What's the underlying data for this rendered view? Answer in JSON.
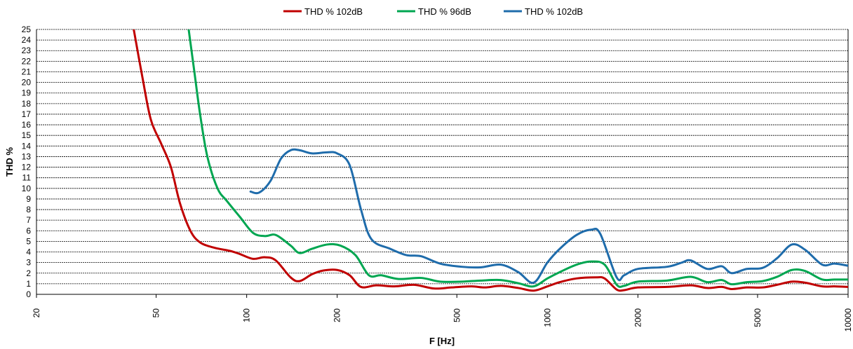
{
  "chart_data": {
    "type": "line",
    "xlabel": "F [Hz]",
    "ylabel": "THD %",
    "xscale": "log",
    "xlim": [
      20,
      10000
    ],
    "ylim": [
      0,
      25
    ],
    "grid": "horizontal-dashed",
    "legend": "top-center",
    "x_ticks": [
      {
        "value": 20,
        "label": "20"
      },
      {
        "value": 50,
        "label": "50"
      },
      {
        "value": 100,
        "label": "100"
      },
      {
        "value": 200,
        "label": "200"
      },
      {
        "value": 500,
        "label": "500"
      },
      {
        "value": 1000,
        "label": "1000"
      },
      {
        "value": 2000,
        "label": "2000"
      },
      {
        "value": 5000,
        "label": "5000"
      },
      {
        "value": 10000,
        "label": "10000"
      }
    ],
    "y_ticks": [
      "0",
      "1",
      "2",
      "3",
      "4",
      "5",
      "6",
      "7",
      "8",
      "9",
      "10",
      "11",
      "12",
      "13",
      "14",
      "15",
      "16",
      "17",
      "18",
      "19",
      "20",
      "21",
      "22",
      "23",
      "24",
      "25"
    ],
    "series": [
      {
        "name": "THD % 102dB",
        "color": "#c00000",
        "points": [
          [
            42,
            25.2
          ],
          [
            45,
            20.5
          ],
          [
            48,
            16.5
          ],
          [
            52,
            14.2
          ],
          [
            56,
            12.0
          ],
          [
            60,
            8.6
          ],
          [
            65,
            6.0
          ],
          [
            70,
            4.9
          ],
          [
            78,
            4.4
          ],
          [
            88,
            4.1
          ],
          [
            95,
            3.8
          ],
          [
            105,
            3.35
          ],
          [
            115,
            3.5
          ],
          [
            125,
            3.2
          ],
          [
            140,
            1.6
          ],
          [
            150,
            1.25
          ],
          [
            165,
            1.9
          ],
          [
            180,
            2.25
          ],
          [
            200,
            2.3
          ],
          [
            220,
            1.8
          ],
          [
            240,
            0.7
          ],
          [
            270,
            0.85
          ],
          [
            310,
            0.75
          ],
          [
            360,
            0.9
          ],
          [
            420,
            0.55
          ],
          [
            480,
            0.65
          ],
          [
            560,
            0.75
          ],
          [
            620,
            0.65
          ],
          [
            700,
            0.8
          ],
          [
            800,
            0.6
          ],
          [
            900,
            0.35
          ],
          [
            1000,
            0.75
          ],
          [
            1100,
            1.15
          ],
          [
            1250,
            1.5
          ],
          [
            1450,
            1.6
          ],
          [
            1550,
            1.5
          ],
          [
            1700,
            0.45
          ],
          [
            1800,
            0.4
          ],
          [
            2000,
            0.65
          ],
          [
            2500,
            0.7
          ],
          [
            3000,
            0.85
          ],
          [
            3400,
            0.6
          ],
          [
            3800,
            0.7
          ],
          [
            4100,
            0.5
          ],
          [
            4600,
            0.65
          ],
          [
            5200,
            0.65
          ],
          [
            5800,
            0.9
          ],
          [
            6500,
            1.2
          ],
          [
            7200,
            1.1
          ],
          [
            8200,
            0.75
          ],
          [
            9000,
            0.75
          ],
          [
            10000,
            0.7
          ]
        ]
      },
      {
        "name": "THD % 96dB",
        "color": "#00a651",
        "points": [
          [
            64,
            25.2
          ],
          [
            67,
            21.0
          ],
          [
            70,
            17.0
          ],
          [
            74,
            13.0
          ],
          [
            80,
            10.0
          ],
          [
            86,
            8.8
          ],
          [
            95,
            7.3
          ],
          [
            105,
            5.8
          ],
          [
            115,
            5.5
          ],
          [
            125,
            5.6
          ],
          [
            140,
            4.6
          ],
          [
            150,
            3.9
          ],
          [
            165,
            4.3
          ],
          [
            185,
            4.7
          ],
          [
            205,
            4.6
          ],
          [
            230,
            3.7
          ],
          [
            255,
            1.8
          ],
          [
            280,
            1.8
          ],
          [
            320,
            1.45
          ],
          [
            380,
            1.55
          ],
          [
            440,
            1.2
          ],
          [
            520,
            1.2
          ],
          [
            600,
            1.3
          ],
          [
            700,
            1.35
          ],
          [
            800,
            1.05
          ],
          [
            900,
            0.75
          ],
          [
            1000,
            1.5
          ],
          [
            1100,
            2.1
          ],
          [
            1250,
            2.8
          ],
          [
            1400,
            3.1
          ],
          [
            1550,
            2.8
          ],
          [
            1700,
            0.9
          ],
          [
            1800,
            0.8
          ],
          [
            2000,
            1.2
          ],
          [
            2500,
            1.3
          ],
          [
            3000,
            1.65
          ],
          [
            3400,
            1.15
          ],
          [
            3800,
            1.35
          ],
          [
            4100,
            0.95
          ],
          [
            4600,
            1.15
          ],
          [
            5200,
            1.25
          ],
          [
            5800,
            1.65
          ],
          [
            6500,
            2.3
          ],
          [
            7200,
            2.2
          ],
          [
            8200,
            1.4
          ],
          [
            9000,
            1.4
          ],
          [
            10000,
            1.4
          ]
        ]
      },
      {
        "name": "THD % 102dB",
        "color": "#1f6cab",
        "points": [
          [
            103,
            9.7
          ],
          [
            110,
            9.6
          ],
          [
            120,
            10.7
          ],
          [
            130,
            12.8
          ],
          [
            140,
            13.6
          ],
          [
            150,
            13.6
          ],
          [
            165,
            13.3
          ],
          [
            185,
            13.4
          ],
          [
            200,
            13.3
          ],
          [
            220,
            12.2
          ],
          [
            240,
            8.0
          ],
          [
            260,
            5.2
          ],
          [
            300,
            4.3
          ],
          [
            340,
            3.7
          ],
          [
            380,
            3.6
          ],
          [
            440,
            2.9
          ],
          [
            520,
            2.6
          ],
          [
            600,
            2.55
          ],
          [
            700,
            2.8
          ],
          [
            800,
            2.1
          ],
          [
            900,
            1.1
          ],
          [
            1000,
            3.0
          ],
          [
            1100,
            4.3
          ],
          [
            1250,
            5.6
          ],
          [
            1400,
            6.1
          ],
          [
            1500,
            5.7
          ],
          [
            1700,
            1.6
          ],
          [
            1800,
            1.8
          ],
          [
            2000,
            2.4
          ],
          [
            2500,
            2.6
          ],
          [
            2800,
            3.0
          ],
          [
            3000,
            3.2
          ],
          [
            3400,
            2.4
          ],
          [
            3800,
            2.65
          ],
          [
            4100,
            2.0
          ],
          [
            4600,
            2.4
          ],
          [
            5200,
            2.5
          ],
          [
            5800,
            3.4
          ],
          [
            6500,
            4.7
          ],
          [
            7200,
            4.2
          ],
          [
            8200,
            2.8
          ],
          [
            9000,
            2.9
          ],
          [
            10000,
            2.7
          ]
        ]
      }
    ]
  }
}
